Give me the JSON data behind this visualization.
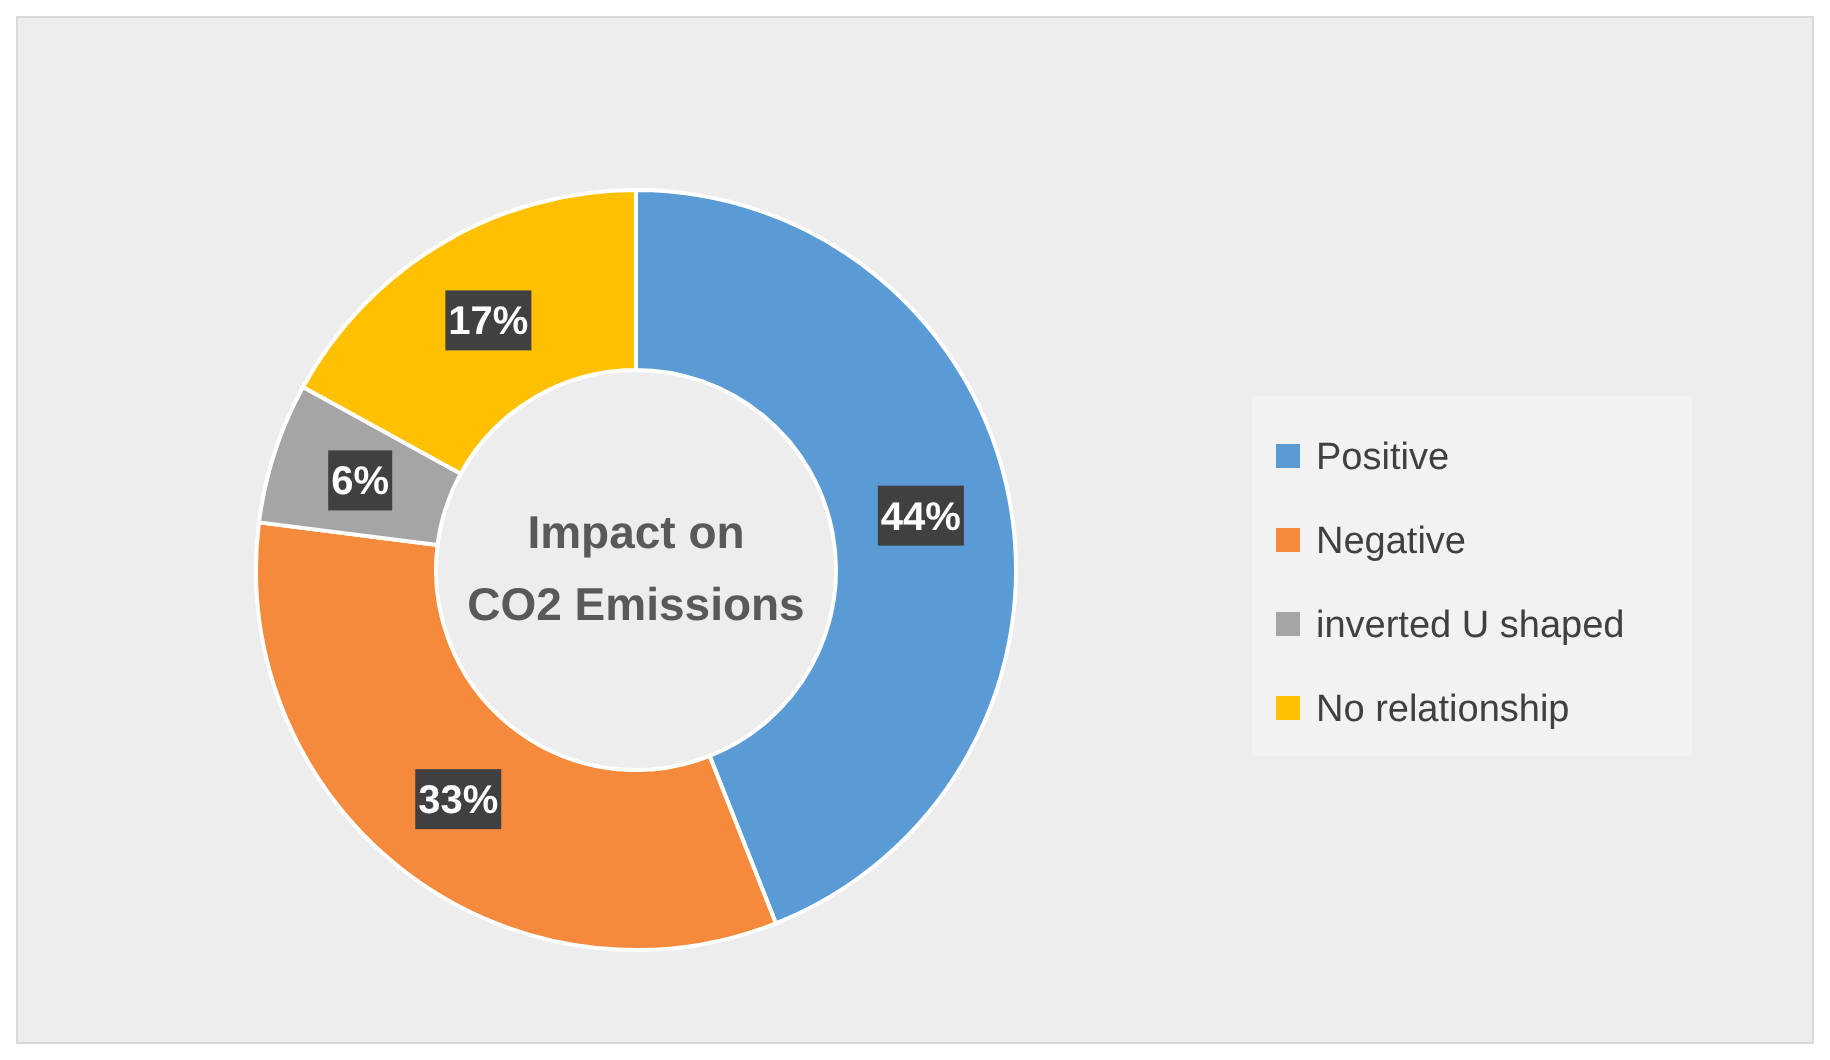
{
  "chart_data": {
    "type": "donut",
    "title": "Impact on CO2 Emissions",
    "categories": [
      "Positive",
      "Negative",
      "inverted U shaped",
      "No relationship"
    ],
    "values": [
      44,
      33,
      6,
      17
    ],
    "colors": [
      "#5b9bd5",
      "#f58a3c",
      "#a5a5a5",
      "#ffc000"
    ],
    "value_labels": [
      "44%",
      "33%",
      "6%",
      "17%"
    ],
    "legend": "right"
  }
}
